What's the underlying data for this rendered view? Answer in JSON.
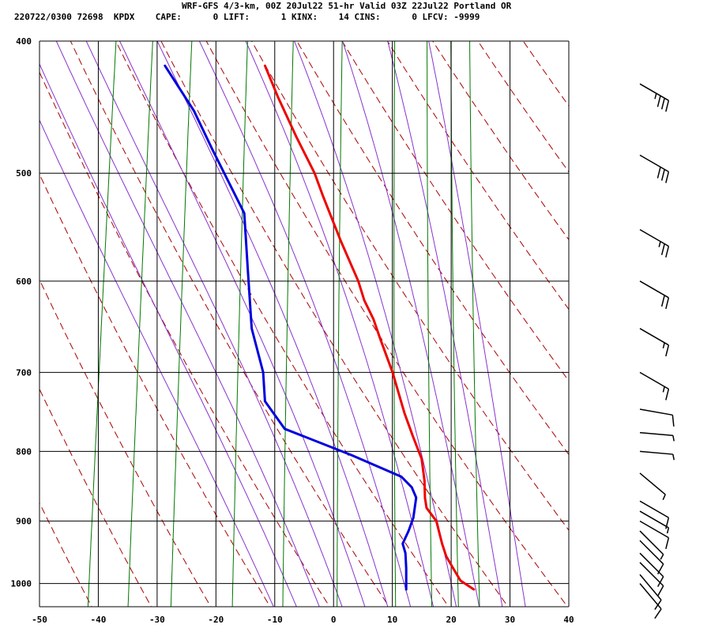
{
  "header": {
    "title": "WRF-GFS 4/3-km, 00Z 20Jul22 51-hr Valid 03Z 22Jul22 Portland OR",
    "stats": "220722/0300 72698  KPDX    CAPE:      0 LIFT:      1 KINX:    14 CINS:      0 LFCV: -9999"
  },
  "colors": {
    "temperature": "#ee0000",
    "dewpoint": "#0000dd",
    "dry_adiabat": "#aa0000",
    "moist_adiabat": "#8833cc",
    "mixing_ratio": "#007700",
    "grid": "#000000"
  },
  "chart_data": {
    "type": "line",
    "subtype": "skew-T log-p sounding",
    "x_tick_labels": [
      "-50",
      "-40",
      "-30",
      "-20",
      "-10",
      "0",
      "10",
      "20",
      "30",
      "40"
    ],
    "y_tick_labels": [
      "400",
      "500",
      "600",
      "700",
      "800",
      "900",
      "1000"
    ],
    "xlim": [
      -50,
      40
    ],
    "ylim": [
      1040,
      400
    ],
    "y_scale": "log",
    "grid": true,
    "x_ticks": [
      -50,
      -40,
      -30,
      -20,
      -10,
      0,
      10,
      20,
      30,
      40
    ],
    "y_ticks": [
      400,
      500,
      600,
      700,
      800,
      900,
      1000
    ],
    "series": [
      {
        "kind": "temperature",
        "points": [
          {
            "p": 1010,
            "x": 24
          },
          {
            "p": 995,
            "x": 21.5
          },
          {
            "p": 975,
            "x": 20
          },
          {
            "p": 955,
            "x": 18.5
          },
          {
            "p": 935,
            "x": 17.5
          },
          {
            "p": 900,
            "x": 16
          },
          {
            "p": 880,
            "x": 14
          },
          {
            "p": 865,
            "x": 13.5
          },
          {
            "p": 840,
            "x": 13
          },
          {
            "p": 810,
            "x": 12
          },
          {
            "p": 780,
            "x": 10
          },
          {
            "p": 750,
            "x": 8
          },
          {
            "p": 700,
            "x": 5
          },
          {
            "p": 660,
            "x": 2
          },
          {
            "p": 640,
            "x": 0.5
          },
          {
            "p": 620,
            "x": -1.5
          },
          {
            "p": 600,
            "x": -3
          },
          {
            "p": 560,
            "x": -7
          },
          {
            "p": 520,
            "x": -11
          },
          {
            "p": 500,
            "x": -13
          },
          {
            "p": 470,
            "x": -17
          },
          {
            "p": 440,
            "x": -21
          },
          {
            "p": 417,
            "x": -24
          }
        ]
      },
      {
        "kind": "dewpoint",
        "points": [
          {
            "p": 1010,
            "x": 12.5
          },
          {
            "p": 975,
            "x": 12
          },
          {
            "p": 950,
            "x": 11.5
          },
          {
            "p": 935,
            "x": 10.8
          },
          {
            "p": 915,
            "x": 11.5
          },
          {
            "p": 895,
            "x": 12
          },
          {
            "p": 865,
            "x": 12
          },
          {
            "p": 850,
            "x": 11
          },
          {
            "p": 835,
            "x": 9
          },
          {
            "p": 805,
            "x": 0
          },
          {
            "p": 770,
            "x": -12
          },
          {
            "p": 735,
            "x": -16
          },
          {
            "p": 700,
            "x": -17
          },
          {
            "p": 650,
            "x": -20
          },
          {
            "p": 590,
            "x": -22
          },
          {
            "p": 535,
            "x": -24
          },
          {
            "p": 480,
            "x": -31
          },
          {
            "p": 450,
            "x": -35
          },
          {
            "p": 417,
            "x": -41
          }
        ]
      }
    ],
    "dry_adiabats_theta_K": [
      230,
      240,
      250,
      260,
      270,
      280,
      290,
      300,
      310,
      320,
      330,
      340,
      350,
      360,
      370,
      380
    ],
    "moist_adiabats_theta_w_C": [
      -12,
      -8,
      -4,
      0,
      4,
      8,
      12,
      16,
      20,
      24,
      28,
      32
    ],
    "mixing_ratio_lines_gkg": [
      0.1,
      0.2,
      0.4,
      1,
      2,
      4,
      8,
      12,
      16,
      20
    ],
    "wind_barbs": [
      {
        "p": 1000,
        "speed_kt": 10,
        "dir_deg": 320
      },
      {
        "p": 985,
        "speed_kt": 10,
        "dir_deg": 320
      },
      {
        "p": 965,
        "speed_kt": 10,
        "dir_deg": 315
      },
      {
        "p": 950,
        "speed_kt": 10,
        "dir_deg": 315
      },
      {
        "p": 930,
        "speed_kt": 10,
        "dir_deg": 315
      },
      {
        "p": 915,
        "speed_kt": 5,
        "dir_deg": 315
      },
      {
        "p": 900,
        "speed_kt": 10,
        "dir_deg": 300
      },
      {
        "p": 885,
        "speed_kt": 5,
        "dir_deg": 300
      },
      {
        "p": 870,
        "speed_kt": 10,
        "dir_deg": 300
      },
      {
        "p": 830,
        "speed_kt": 5,
        "dir_deg": 310
      },
      {
        "p": 800,
        "speed_kt": 5,
        "dir_deg": 275
      },
      {
        "p": 775,
        "speed_kt": 5,
        "dir_deg": 275
      },
      {
        "p": 745,
        "speed_kt": 10,
        "dir_deg": 280
      },
      {
        "p": 700,
        "speed_kt": 15,
        "dir_deg": 300
      },
      {
        "p": 650,
        "speed_kt": 15,
        "dir_deg": 300
      },
      {
        "p": 600,
        "speed_kt": 20,
        "dir_deg": 300
      },
      {
        "p": 550,
        "speed_kt": 25,
        "dir_deg": 300
      },
      {
        "p": 485,
        "speed_kt": 30,
        "dir_deg": 300
      },
      {
        "p": 430,
        "speed_kt": 35,
        "dir_deg": 300
      }
    ]
  }
}
